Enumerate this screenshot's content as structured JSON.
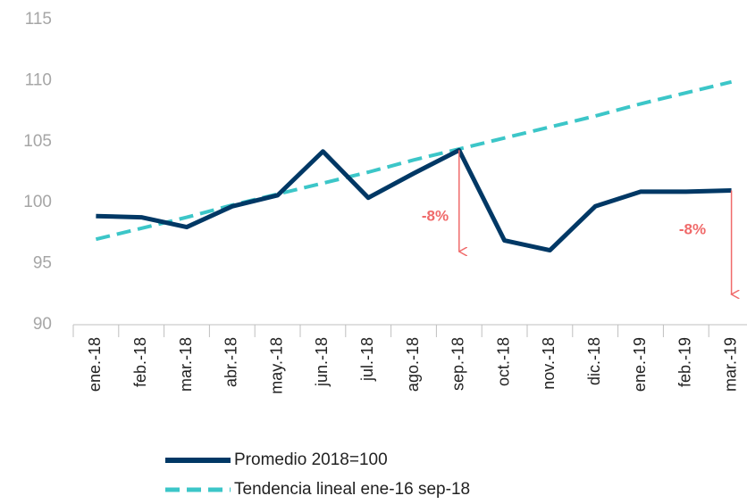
{
  "chart_data": {
    "type": "line",
    "categories": [
      "ene.-18",
      "feb.-18",
      "mar.-18",
      "abr.-18",
      "may.-18",
      "jun.-18",
      "jul.-18",
      "ago.-18",
      "sep.-18",
      "oct.-18",
      "nov.-18",
      "dic.-18",
      "ene.-19",
      "feb.-19",
      "mar.-19"
    ],
    "series": [
      {
        "name": "Promedio 2018=100",
        "color": "#003865",
        "dash": false,
        "values": [
          98.9,
          98.8,
          98.0,
          99.7,
          100.6,
          104.2,
          100.4,
          102.4,
          104.3,
          96.9,
          96.1,
          99.7,
          100.9,
          100.9,
          101.0
        ]
      },
      {
        "name": "Tendencia lineal ene-16 sep-18",
        "color": "#3cc6c8",
        "dash": true,
        "values": [
          97.0,
          97.9,
          98.8,
          99.8,
          100.7,
          101.6,
          102.5,
          103.5,
          104.4,
          105.3,
          106.2,
          107.1,
          108.1,
          109.0,
          109.9
        ]
      }
    ],
    "annotations": [
      "-8%",
      "-8%"
    ],
    "ylim": [
      90,
      115
    ],
    "yticks": [
      90,
      95,
      100,
      105,
      110,
      115
    ],
    "grid": false
  }
}
